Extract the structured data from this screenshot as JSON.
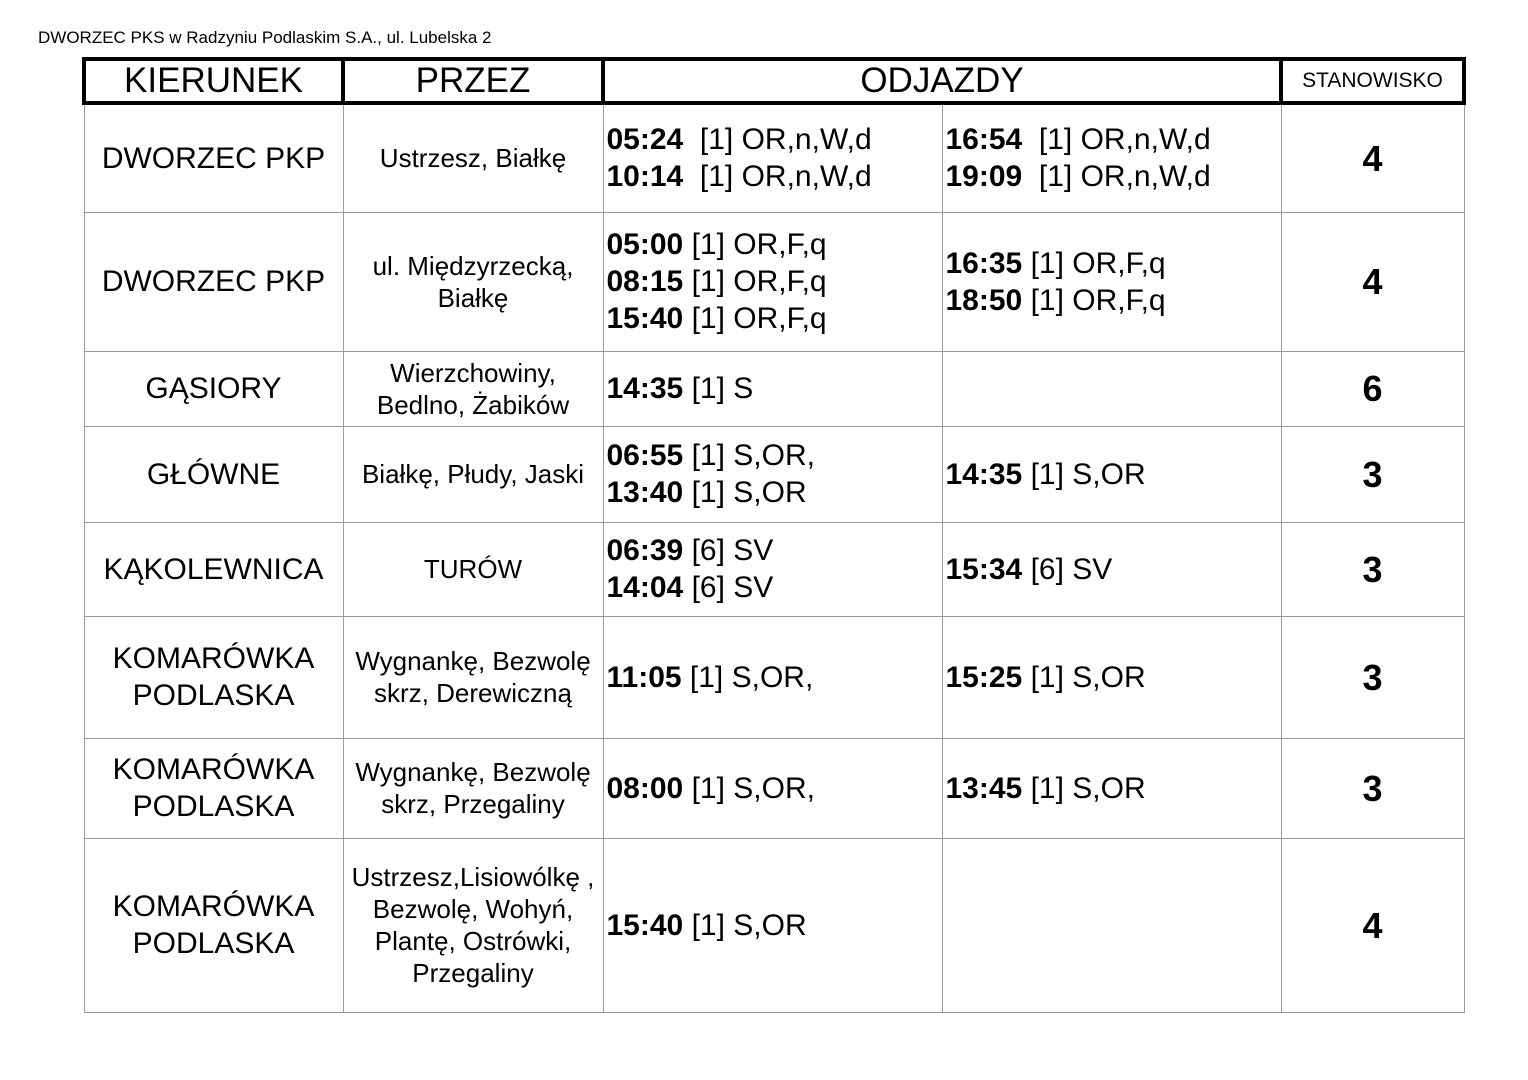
{
  "caption": "DWORZEC PKS w Radzyniu Podlaskim S.A., ul. Lubelska 2",
  "headers": {
    "direction": "KIERUNEK",
    "via": "PRZEZ",
    "departures": "ODJAZDY",
    "stand": "STANOWISKO"
  },
  "rows": [
    {
      "direction": "DWORZEC PKP",
      "via": "Ustrzesz, Białkę",
      "left": [
        {
          "time": "05:24",
          "info": "  [1] OR,n,W,d"
        },
        {
          "time": "10:14",
          "info": "  [1] OR,n,W,d"
        }
      ],
      "right": [
        {
          "time": "16:54",
          "info": "  [1] OR,n,W,d"
        },
        {
          "time": "19:09",
          "info": "  [1] OR,n,W,d"
        }
      ],
      "stand": "4"
    },
    {
      "direction": "DWORZEC PKP",
      "via": "ul. Międzyrzecką, Białkę",
      "left": [
        {
          "time": "05:00",
          "info": " [1] OR,F,q"
        },
        {
          "time": "08:15",
          "info": " [1] OR,F,q"
        },
        {
          "time": "15:40",
          "info": " [1] OR,F,q"
        }
      ],
      "right": [
        {
          "time": "16:35",
          "info": " [1] OR,F,q"
        },
        {
          "time": "18:50",
          "info": " [1] OR,F,q"
        }
      ],
      "stand": "4"
    },
    {
      "direction": "GĄSIORY",
      "via": "Wierzchowiny, Bedlno, Żabików",
      "left": [
        {
          "time": "14:35",
          "info": " [1] S"
        }
      ],
      "right": [],
      "stand": "6"
    },
    {
      "direction": "GŁÓWNE",
      "via": "Białkę, Płudy, Jaski",
      "left": [
        {
          "time": "06:55",
          "info": " [1] S,OR,"
        },
        {
          "time": "13:40",
          "info": " [1] S,OR"
        }
      ],
      "right": [
        {
          "time": "14:35",
          "info": " [1] S,OR"
        }
      ],
      "stand": "3"
    },
    {
      "direction": "KĄKOLEWNICA",
      "via": "TURÓW",
      "left": [
        {
          "time": "06:39",
          "info": " [6] SV"
        },
        {
          "time": "14:04",
          "info": " [6] SV"
        }
      ],
      "right": [
        {
          "time": "15:34",
          "info": " [6] SV"
        }
      ],
      "stand": "3"
    },
    {
      "direction": "KOMARÓWKA PODLASKA",
      "via": "Wygnankę, Bezwolę skrz, Derewiczną",
      "left": [
        {
          "time": "11:05",
          "info": " [1] S,OR,"
        }
      ],
      "right": [
        {
          "time": "15:25",
          "info": " [1] S,OR"
        }
      ],
      "stand": "3"
    },
    {
      "direction": "KOMARÓWKA PODLASKA",
      "via": "Wygnankę, Bezwolę skrz, Przegaliny",
      "left": [
        {
          "time": "08:00",
          "info": " [1] S,OR,"
        }
      ],
      "right": [
        {
          "time": "13:45",
          "info": " [1] S,OR"
        }
      ],
      "stand": "3"
    },
    {
      "direction": "KOMARÓWKA PODLASKA",
      "via": "Ustrzesz,Lisiowólkę , Bezwolę, Wohyń, Plantę, Ostrówki, Przegaliny",
      "left": [
        {
          "time": "15:40",
          "info": " [1] S,OR"
        }
      ],
      "right": [],
      "stand": "4"
    }
  ]
}
